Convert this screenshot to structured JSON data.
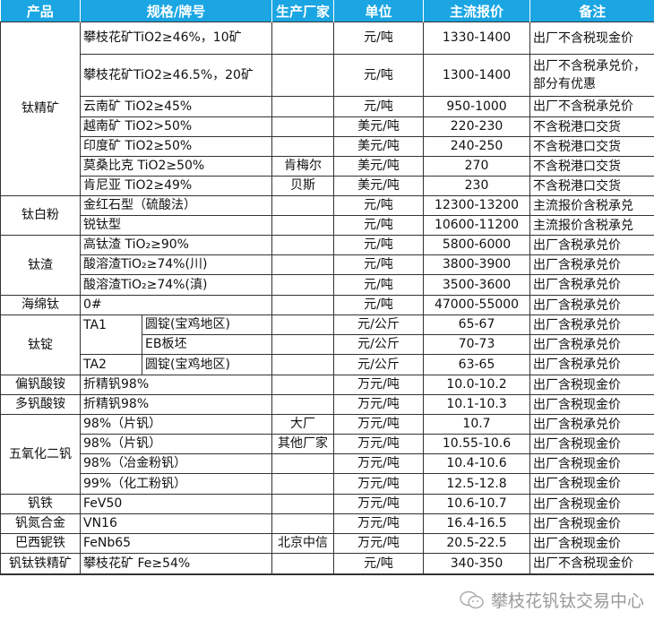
{
  "header": [
    "产品",
    "规格/牌号",
    "生产厂家",
    "单位",
    "主流报价",
    "备注"
  ],
  "colors": {
    "header_bg": "#1ba6e3",
    "header_text": "#ffffff",
    "border": "#333333"
  },
  "groups": [
    {
      "product": "钛精矿",
      "items": [
        {
          "spec": "攀枝花矿TiO2≥46%，10矿",
          "maker": "",
          "unit": "元/吨",
          "price": "1330-1400",
          "note": "出厂不含税现金价"
        },
        {
          "spec": "攀枝花矿TiO2≥46.5%，20矿",
          "maker": "",
          "unit": "元/吨",
          "price": "1300-1400",
          "note": "出厂不含税承兑价，部分有优惠"
        },
        {
          "spec": "云南矿 TiO2≥45%",
          "maker": "",
          "unit": "元/吨",
          "price": "950-1000",
          "note": "出厂不含税承兑价"
        },
        {
          "spec": "越南矿 TiO2>50%",
          "maker": "",
          "unit": "美元/吨",
          "price": "220-230",
          "note": "不含税港口交货"
        },
        {
          "spec": "印度矿 TiO2≥50%",
          "maker": "",
          "unit": "美元/吨",
          "price": "240-250",
          "note": "不含税港口交货"
        },
        {
          "spec": "莫桑比克 TiO2≥50%",
          "maker": "肯梅尔",
          "unit": "美元/吨",
          "price": "270",
          "note": "不含税港口交货"
        },
        {
          "spec": "肯尼亚 TiO2≥49%",
          "maker": "贝斯",
          "unit": "美元/吨",
          "price": "230",
          "note": "不含税港口交货"
        }
      ]
    },
    {
      "product": "钛白粉",
      "items": [
        {
          "spec": "金红石型（硫酸法）",
          "maker": "",
          "unit": "元/吨",
          "price": "12300-13200",
          "note": "主流报价含税承兑"
        },
        {
          "spec": "锐钛型",
          "maker": "",
          "unit": "元/吨",
          "price": "10600-11200",
          "note": "主流报价含税承兑"
        }
      ]
    },
    {
      "product": "钛渣",
      "items": [
        {
          "spec": "高钛渣 TiO₂≥90%",
          "maker": "",
          "unit": "元/吨",
          "price": "5800-6000",
          "note": "出厂含税承兑价"
        },
        {
          "spec": "酸溶渣TiO₂≥74%(川)",
          "maker": "",
          "unit": "元/吨",
          "price": "3800-3900",
          "note": "出厂含税承兑价"
        },
        {
          "spec": "酸溶渣TiO₂≥74%(滇)",
          "maker": "",
          "unit": "元/吨",
          "price": "3500-3600",
          "note": "出厂含税承兑价"
        }
      ]
    },
    {
      "product": "海绵钛",
      "items": [
        {
          "spec": "0#",
          "maker": "",
          "unit": "元/吨",
          "price": "47000-55000",
          "note": "出厂含税承兑价"
        }
      ]
    },
    {
      "product": "钛锭",
      "items": [
        {
          "grade": "TA1",
          "sub": "圆锭(宝鸡地区)",
          "maker": "",
          "unit": "元/公斤",
          "price": "65-67",
          "note": "出厂含税承兑价"
        },
        {
          "sub": "EB板坯",
          "maker": "",
          "unit": "元/公斤",
          "price": "70-73",
          "note": "出厂含税承兑价"
        },
        {
          "grade": "TA2",
          "sub": "圆锭(宝鸡地区)",
          "maker": "",
          "unit": "元/公斤",
          "price": "63-65",
          "note": "出厂含税承兑价"
        }
      ]
    },
    {
      "product": "偏钒酸铵",
      "items": [
        {
          "spec": "折精钒98%",
          "maker": "",
          "unit": "万元/吨",
          "price": "10.0-10.2",
          "note": "出厂含税现金价"
        }
      ]
    },
    {
      "product": "多钒酸铵",
      "items": [
        {
          "spec": "折精钒98%",
          "maker": "",
          "unit": "万元/吨",
          "price": "10.1-10.3",
          "note": "出厂含税现金价"
        }
      ]
    },
    {
      "product": "五氧化二钒",
      "items": [
        {
          "spec": "98%（片钒）",
          "maker": "大厂",
          "unit": "万元/吨",
          "price": "10.7",
          "note": "出厂含税承兑价"
        },
        {
          "spec": "98%（片钒）",
          "maker": "其他厂家",
          "unit": "万元/吨",
          "price": "10.55-10.6",
          "note": "出厂含税现金价"
        },
        {
          "spec": "98%（冶金粉钒）",
          "maker": "",
          "unit": "万元/吨",
          "price": "10.4-10.6",
          "note": "出厂含税现金价"
        },
        {
          "spec": "99%（化工粉钒）",
          "maker": "",
          "unit": "万元/吨",
          "price": "12.5-12.8",
          "note": "出厂含税现金价"
        }
      ]
    },
    {
      "product": "钒铁",
      "items": [
        {
          "spec": "FeV50",
          "maker": "",
          "unit": "万元/吨",
          "price": "10.6-10.7",
          "note": "出厂含税现金价"
        }
      ]
    },
    {
      "product": "钒氮合金",
      "items": [
        {
          "spec": "VN16",
          "maker": "",
          "unit": "万元/吨",
          "price": "16.4-16.5",
          "note": "出厂含税现金价"
        }
      ]
    },
    {
      "product": "巴西铌铁",
      "items": [
        {
          "spec": "FeNb65",
          "maker": "北京中信",
          "unit": "万元/吨",
          "price": "20.5-22.5",
          "note": "出厂含税现金价"
        }
      ]
    },
    {
      "product": "钒钛铁精矿",
      "items": [
        {
          "spec": "攀枝花矿 Fe≥54%",
          "maker": "",
          "unit": "元/吨",
          "price": "340-350",
          "note": "出厂不含税现金价"
        }
      ]
    }
  ],
  "watermark": {
    "text": "攀枝花钒钛交易中心",
    "icon": "wechat-icon"
  }
}
